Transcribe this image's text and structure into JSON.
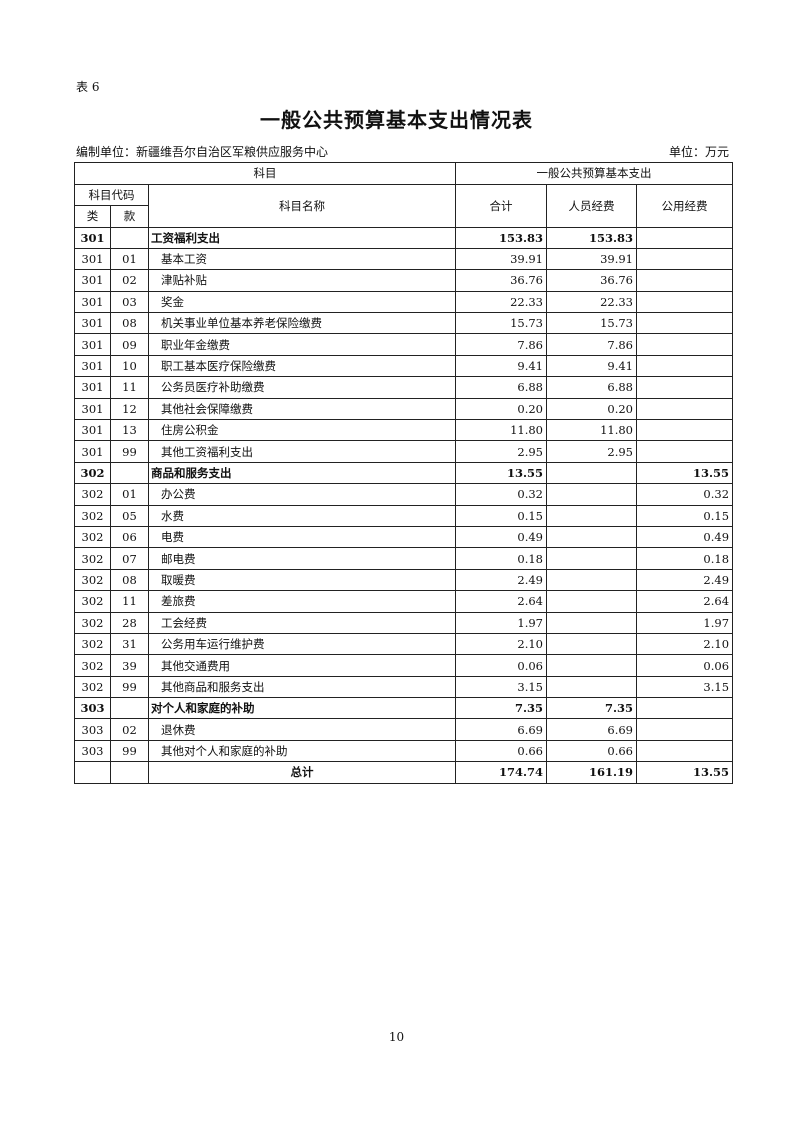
{
  "table_label": "表 6",
  "title": "一般公共预算基本支出情况表",
  "org": "编制单位：新疆维吾尔自治区军粮供应服务中心",
  "unit": "单位：万元",
  "header": {
    "subject": "科目",
    "expenditure": "一般公共预算基本支出",
    "code": "科目代码",
    "name": "科目名称",
    "total": "合计",
    "personnel": "人员经费",
    "public": "公用经费",
    "class": "类",
    "item": "款"
  },
  "rows": [
    {
      "lei": "301",
      "kuan": "",
      "name": "工资福利支出",
      "total": "153.83",
      "personnel": "153.83",
      "public": "",
      "bold": true
    },
    {
      "lei": "301",
      "kuan": "01",
      "name": "基本工资",
      "total": "39.91",
      "personnel": "39.91",
      "public": ""
    },
    {
      "lei": "301",
      "kuan": "02",
      "name": "津贴补贴",
      "total": "36.76",
      "personnel": "36.76",
      "public": ""
    },
    {
      "lei": "301",
      "kuan": "03",
      "name": "奖金",
      "total": "22.33",
      "personnel": "22.33",
      "public": ""
    },
    {
      "lei": "301",
      "kuan": "08",
      "name": "机关事业单位基本养老保险缴费",
      "total": "15.73",
      "personnel": "15.73",
      "public": ""
    },
    {
      "lei": "301",
      "kuan": "09",
      "name": "职业年金缴费",
      "total": "7.86",
      "personnel": "7.86",
      "public": ""
    },
    {
      "lei": "301",
      "kuan": "10",
      "name": "职工基本医疗保险缴费",
      "total": "9.41",
      "personnel": "9.41",
      "public": ""
    },
    {
      "lei": "301",
      "kuan": "11",
      "name": "公务员医疗补助缴费",
      "total": "6.88",
      "personnel": "6.88",
      "public": ""
    },
    {
      "lei": "301",
      "kuan": "12",
      "name": "其他社会保障缴费",
      "total": "0.20",
      "personnel": "0.20",
      "public": ""
    },
    {
      "lei": "301",
      "kuan": "13",
      "name": "住房公积金",
      "total": "11.80",
      "personnel": "11.80",
      "public": ""
    },
    {
      "lei": "301",
      "kuan": "99",
      "name": "其他工资福利支出",
      "total": "2.95",
      "personnel": "2.95",
      "public": ""
    },
    {
      "lei": "302",
      "kuan": "",
      "name": "商品和服务支出",
      "total": "13.55",
      "personnel": "",
      "public": "13.55",
      "bold": true
    },
    {
      "lei": "302",
      "kuan": "01",
      "name": "办公费",
      "total": "0.32",
      "personnel": "",
      "public": "0.32"
    },
    {
      "lei": "302",
      "kuan": "05",
      "name": "水费",
      "total": "0.15",
      "personnel": "",
      "public": "0.15"
    },
    {
      "lei": "302",
      "kuan": "06",
      "name": "电费",
      "total": "0.49",
      "personnel": "",
      "public": "0.49"
    },
    {
      "lei": "302",
      "kuan": "07",
      "name": "邮电费",
      "total": "0.18",
      "personnel": "",
      "public": "0.18"
    },
    {
      "lei": "302",
      "kuan": "08",
      "name": "取暖费",
      "total": "2.49",
      "personnel": "",
      "public": "2.49"
    },
    {
      "lei": "302",
      "kuan": "11",
      "name": "差旅费",
      "total": "2.64",
      "personnel": "",
      "public": "2.64"
    },
    {
      "lei": "302",
      "kuan": "28",
      "name": "工会经费",
      "total": "1.97",
      "personnel": "",
      "public": "1.97"
    },
    {
      "lei": "302",
      "kuan": "31",
      "name": "公务用车运行维护费",
      "total": "2.10",
      "personnel": "",
      "public": "2.10"
    },
    {
      "lei": "302",
      "kuan": "39",
      "name": "其他交通费用",
      "total": "0.06",
      "personnel": "",
      "public": "0.06"
    },
    {
      "lei": "302",
      "kuan": "99",
      "name": "其他商品和服务支出",
      "total": "3.15",
      "personnel": "",
      "public": "3.15"
    },
    {
      "lei": "303",
      "kuan": "",
      "name": "对个人和家庭的补助",
      "total": "7.35",
      "personnel": "7.35",
      "public": "",
      "bold": true
    },
    {
      "lei": "303",
      "kuan": "02",
      "name": "退休费",
      "total": "6.69",
      "personnel": "6.69",
      "public": ""
    },
    {
      "lei": "303",
      "kuan": "99",
      "name": "其他对个人和家庭的补助",
      "total": "0.66",
      "personnel": "0.66",
      "public": ""
    }
  ],
  "grand_total": {
    "label": "总计",
    "total": "174.74",
    "personnel": "161.19",
    "public": "13.55"
  },
  "page_number": "10"
}
